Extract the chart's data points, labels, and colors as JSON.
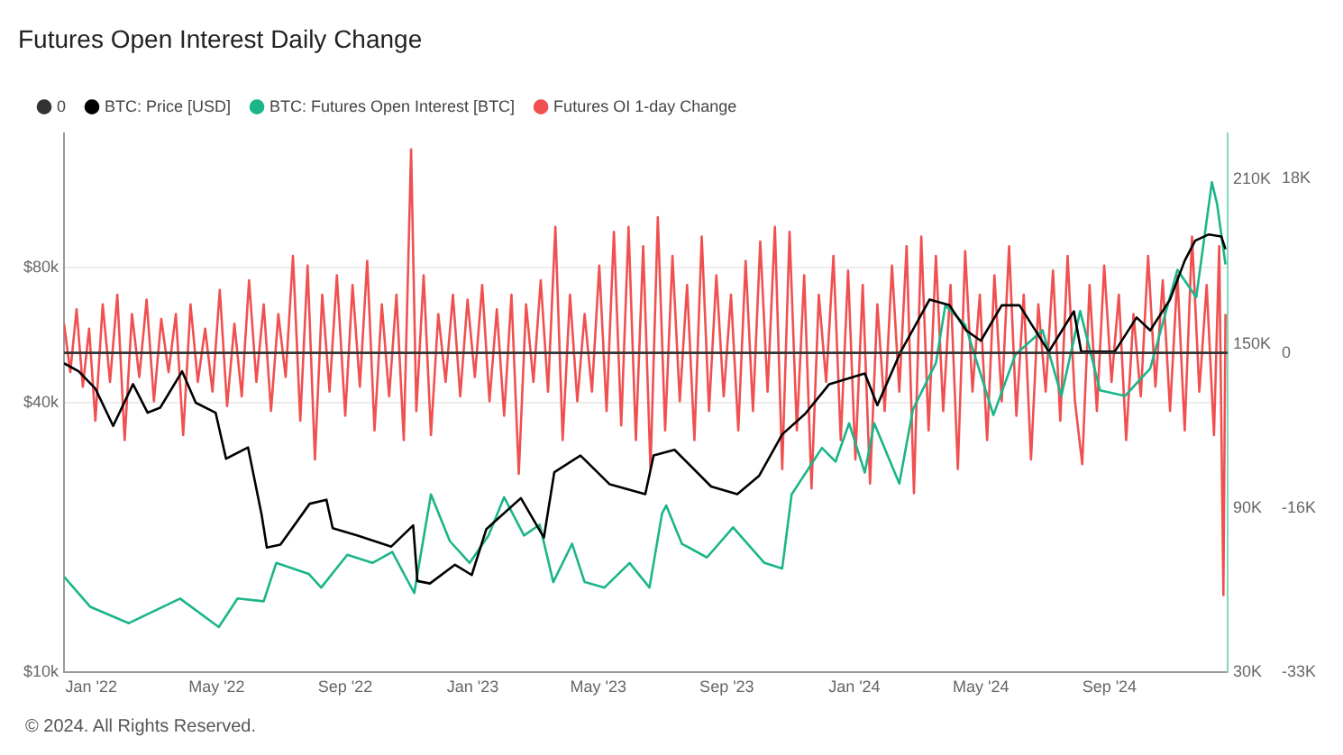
{
  "chart_data": {
    "type": "line",
    "title": "Futures Open Interest Daily Change",
    "legend": "top left",
    "grid": "y",
    "log": "y",
    "marker": "none",
    "xlim": [
      "2021-12-06",
      "2024-12-23"
    ],
    "xticks": [
      {
        "value": "2022-01-01",
        "label": "Jan '22"
      },
      {
        "value": "2022-05-01",
        "label": "May '22"
      },
      {
        "value": "2022-09-01",
        "label": "Sep '22"
      },
      {
        "value": "2023-01-01",
        "label": "Jan '23"
      },
      {
        "value": "2023-05-01",
        "label": "May '23"
      },
      {
        "value": "2023-09-01",
        "label": "Sep '23"
      },
      {
        "value": "2024-01-01",
        "label": "Jan '24"
      },
      {
        "value": "2024-05-01",
        "label": "May '24"
      },
      {
        "value": "2024-09-01",
        "label": "Sep '24"
      }
    ],
    "ylim": [
      10000,
      160000
    ],
    "yticks": [
      {
        "value": 10000,
        "label": "$10k"
      },
      {
        "value": 40000,
        "label": "$40k"
      },
      {
        "value": 80000,
        "label": "$80k"
      }
    ],
    "y2lim": [
      30000,
      227000
    ],
    "y2ticks": [
      {
        "value": 30000,
        "label": "30K"
      },
      {
        "value": 90000,
        "label": "90K"
      },
      {
        "value": 150000,
        "label": "150K"
      },
      {
        "value": 210000,
        "label": "210K"
      }
    ],
    "y3lim": [
      -33000,
      22700
    ],
    "y3ticks": [
      {
        "value": -33000,
        "label": "-33K"
      },
      {
        "value": -16000,
        "label": "-16K"
      },
      {
        "value": 0,
        "label": "0"
      },
      {
        "value": 18000,
        "label": "18K"
      }
    ],
    "ref_lines": [
      {
        "axis": "y3",
        "value": 0,
        "label": "0",
        "color": "#333333"
      }
    ],
    "series": [
      {
        "name": "BTC: Price [USD]",
        "color": "#000000",
        "axis": "y",
        "x": [
          "2021-12-06",
          "2021-12-20",
          "2022-01-05",
          "2022-01-22",
          "2022-02-10",
          "2022-02-24",
          "2022-03-08",
          "2022-03-29",
          "2022-04-11",
          "2022-04-30",
          "2022-05-10",
          "2022-05-31",
          "2022-06-13",
          "2022-06-18",
          "2022-07-01",
          "2022-07-29",
          "2022-08-14",
          "2022-08-20",
          "2022-09-13",
          "2022-10-15",
          "2022-11-05",
          "2022-11-09",
          "2022-11-21",
          "2022-12-15",
          "2022-12-31",
          "2023-01-14",
          "2023-02-16",
          "2023-03-10",
          "2023-03-20",
          "2023-04-14",
          "2023-05-12",
          "2023-06-15",
          "2023-06-23",
          "2023-07-13",
          "2023-08-17",
          "2023-09-11",
          "2023-10-02",
          "2023-10-24",
          "2023-11-15",
          "2023-12-08",
          "2024-01-11",
          "2024-01-23",
          "2024-02-14",
          "2024-03-13",
          "2024-04-01",
          "2024-04-17",
          "2024-05-01",
          "2024-05-21",
          "2024-06-07",
          "2024-07-05",
          "2024-07-29",
          "2024-08-05",
          "2024-09-06",
          "2024-09-27",
          "2024-10-10",
          "2024-10-29",
          "2024-11-12",
          "2024-11-22",
          "2024-12-05",
          "2024-12-17",
          "2024-12-21"
        ],
        "values": [
          49000,
          47000,
          43000,
          35500,
          44000,
          38000,
          39000,
          47000,
          40000,
          38000,
          30000,
          31800,
          22500,
          19000,
          19300,
          23800,
          24300,
          21000,
          20200,
          19100,
          21300,
          16000,
          15800,
          17400,
          16500,
          20900,
          24500,
          20000,
          28000,
          30500,
          26300,
          25000,
          30500,
          31400,
          26000,
          25000,
          27500,
          34000,
          37800,
          44000,
          46500,
          39500,
          51800,
          68000,
          66000,
          58000,
          55000,
          66000,
          66000,
          52000,
          64000,
          52000,
          52000,
          62000,
          58000,
          68000,
          83000,
          92000,
          95000,
          94000,
          88000
        ]
      },
      {
        "name": "BTC: Futures Open Interest [BTC]",
        "color": "#1bb58a",
        "axis": "y2",
        "x": [
          "2021-12-06",
          "2021-12-31",
          "2022-02-06",
          "2022-03-27",
          "2022-05-03",
          "2022-05-21",
          "2022-06-15",
          "2022-06-27",
          "2022-07-28",
          "2022-08-09",
          "2022-09-03",
          "2022-09-27",
          "2022-10-16",
          "2022-11-06",
          "2022-11-22",
          "2022-12-10",
          "2022-12-29",
          "2023-01-16",
          "2023-01-31",
          "2023-02-19",
          "2023-03-06",
          "2023-03-19",
          "2023-04-06",
          "2023-04-18",
          "2023-05-07",
          "2023-05-31",
          "2023-06-19",
          "2023-07-01",
          "2023-07-05",
          "2023-07-20",
          "2023-08-13",
          "2023-09-07",
          "2023-10-07",
          "2023-10-24",
          "2023-11-02",
          "2023-12-01",
          "2023-12-14",
          "2023-12-27",
          "2024-01-11",
          "2024-01-20",
          "2024-02-13",
          "2024-02-26",
          "2024-03-19",
          "2024-03-28",
          "2024-04-16",
          "2024-05-13",
          "2024-06-03",
          "2024-06-29",
          "2024-07-17",
          "2024-08-04",
          "2024-08-23",
          "2024-09-16",
          "2024-10-10",
          "2024-11-05",
          "2024-11-23",
          "2024-12-08",
          "2024-12-13",
          "2024-12-21"
        ],
        "values": [
          65000,
          54000,
          48000,
          57000,
          46600,
          57000,
          56000,
          70000,
          66000,
          61000,
          73000,
          70000,
          74000,
          59000,
          95000,
          78000,
          70000,
          80000,
          94000,
          80000,
          84000,
          63000,
          77000,
          63000,
          61000,
          70000,
          61000,
          88000,
          91000,
          77000,
          72000,
          83000,
          70000,
          68000,
          95000,
          112000,
          107000,
          121000,
          103000,
          121000,
          99000,
          126000,
          143000,
          164000,
          157000,
          124000,
          146000,
          155000,
          131000,
          162000,
          133000,
          131000,
          141000,
          177000,
          167000,
          209000,
          201000,
          179000
        ]
      },
      {
        "name": "Futures OI 1-day Change",
        "color": "#f05050",
        "axis": "y3",
        "x": [
          "2021-12-06",
          "2021-12-12",
          "2021-12-18",
          "2021-12-24",
          "2021-12-30",
          "2022-01-05",
          "2022-01-12",
          "2022-01-19",
          "2022-01-26",
          "2022-02-02",
          "2022-02-09",
          "2022-02-16",
          "2022-02-23",
          "2022-03-02",
          "2022-03-09",
          "2022-03-16",
          "2022-03-23",
          "2022-03-30",
          "2022-04-06",
          "2022-04-13",
          "2022-04-20",
          "2022-04-27",
          "2022-05-04",
          "2022-05-11",
          "2022-05-18",
          "2022-05-25",
          "2022-06-01",
          "2022-06-08",
          "2022-06-15",
          "2022-06-22",
          "2022-06-29",
          "2022-07-06",
          "2022-07-13",
          "2022-07-20",
          "2022-07-27",
          "2022-08-03",
          "2022-08-10",
          "2022-08-17",
          "2022-08-24",
          "2022-09-01",
          "2022-09-08",
          "2022-09-15",
          "2022-09-22",
          "2022-09-29",
          "2022-10-06",
          "2022-10-13",
          "2022-10-20",
          "2022-10-27",
          "2022-11-03",
          "2022-11-08",
          "2022-11-15",
          "2022-11-22",
          "2022-11-29",
          "2022-12-06",
          "2022-12-13",
          "2022-12-20",
          "2022-12-27",
          "2023-01-03",
          "2023-01-10",
          "2023-01-17",
          "2023-01-24",
          "2023-01-31",
          "2023-02-07",
          "2023-02-14",
          "2023-02-21",
          "2023-02-28",
          "2023-03-07",
          "2023-03-14",
          "2023-03-21",
          "2023-03-28",
          "2023-04-04",
          "2023-04-11",
          "2023-04-18",
          "2023-04-25",
          "2023-05-02",
          "2023-05-09",
          "2023-05-16",
          "2023-05-23",
          "2023-05-30",
          "2023-06-06",
          "2023-06-13",
          "2023-06-20",
          "2023-06-27",
          "2023-07-04",
          "2023-07-11",
          "2023-07-18",
          "2023-07-25",
          "2023-08-01",
          "2023-08-08",
          "2023-08-15",
          "2023-08-22",
          "2023-08-29",
          "2023-09-05",
          "2023-09-12",
          "2023-09-19",
          "2023-09-26",
          "2023-10-03",
          "2023-10-10",
          "2023-10-17",
          "2023-10-24",
          "2023-10-31",
          "2023-11-07",
          "2023-11-14",
          "2023-11-21",
          "2023-11-28",
          "2023-12-05",
          "2023-12-12",
          "2023-12-19",
          "2023-12-26",
          "2024-01-02",
          "2024-01-09",
          "2024-01-16",
          "2024-01-23",
          "2024-01-30",
          "2024-02-06",
          "2024-02-13",
          "2024-02-20",
          "2024-02-27",
          "2024-03-05",
          "2024-03-12",
          "2024-03-19",
          "2024-03-26",
          "2024-04-02",
          "2024-04-09",
          "2024-04-16",
          "2024-04-23",
          "2024-04-30",
          "2024-05-07",
          "2024-05-14",
          "2024-05-21",
          "2024-05-28",
          "2024-06-04",
          "2024-06-11",
          "2024-06-18",
          "2024-06-25",
          "2024-07-02",
          "2024-07-09",
          "2024-07-16",
          "2024-07-23",
          "2024-07-30",
          "2024-08-06",
          "2024-08-13",
          "2024-08-20",
          "2024-08-27",
          "2024-09-03",
          "2024-09-10",
          "2024-09-17",
          "2024-09-24",
          "2024-10-01",
          "2024-10-08",
          "2024-10-15",
          "2024-10-22",
          "2024-10-29",
          "2024-11-05",
          "2024-11-12",
          "2024-11-19",
          "2024-11-26",
          "2024-12-03",
          "2024-12-10",
          "2024-12-15",
          "2024-12-19",
          "2024-12-21"
        ],
        "values": [
          3000,
          -2000,
          4500,
          -3500,
          2500,
          -7000,
          5000,
          -3000,
          6000,
          -9000,
          4000,
          -2500,
          5500,
          -5000,
          3500,
          -2000,
          4000,
          -8500,
          5000,
          -3000,
          2500,
          -4000,
          6500,
          -5500,
          3000,
          -4500,
          7500,
          -3000,
          5000,
          -6000,
          4000,
          -2500,
          10000,
          -7000,
          9000,
          -11000,
          6000,
          -4000,
          8000,
          -6500,
          7000,
          -3500,
          9500,
          -8000,
          5000,
          -4500,
          6000,
          -9000,
          21000,
          -6000,
          8000,
          -8500,
          4000,
          -3000,
          6000,
          -4500,
          5500,
          -2500,
          7000,
          -5000,
          4500,
          -6500,
          6000,
          -12500,
          5000,
          -3000,
          7500,
          -4000,
          13000,
          -9000,
          6000,
          -5000,
          4000,
          -4000,
          9000,
          -6000,
          12500,
          -7500,
          13000,
          -9000,
          11000,
          -12000,
          14000,
          -8000,
          10000,
          -5000,
          7000,
          -9000,
          12000,
          -6000,
          8000,
          -4500,
          6000,
          -8000,
          9500,
          -6000,
          11500,
          -4000,
          13000,
          -12000,
          12500,
          -8000,
          8000,
          -14000,
          6000,
          -3000,
          10000,
          -9000,
          8500,
          -11000,
          7000,
          -13500,
          5000,
          -6000,
          9000,
          -4000,
          11000,
          -14500,
          12000,
          -8000,
          10000,
          -6000,
          7000,
          -12000,
          10500,
          -4000,
          6000,
          -9000,
          8000,
          -5000,
          11000,
          -6500,
          6000,
          -11000,
          5000,
          -4000,
          8500,
          -7000,
          10000,
          -5000,
          -11500,
          7000,
          -6000,
          9000,
          -3000,
          6000,
          -9000,
          4000,
          -4500,
          10000,
          -3500,
          7500,
          -6000,
          8000,
          -8000,
          12000,
          -4000,
          7000,
          -8500,
          11000,
          -25000,
          4000
        ]
      }
    ],
    "annotations": [
      "© 2024. All Rights Reserved."
    ]
  }
}
